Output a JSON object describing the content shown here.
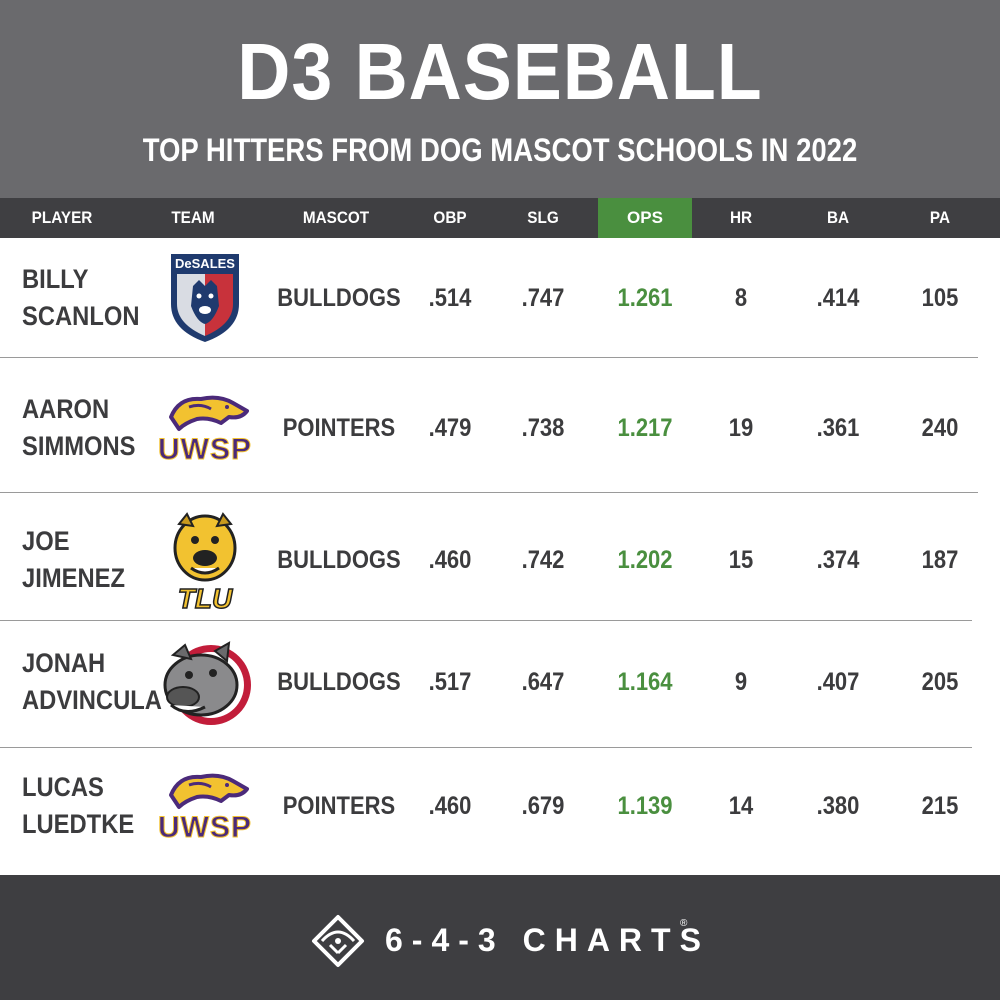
{
  "header": {
    "title": "D3 BASEBALL",
    "subtitle": "TOP HITTERS FROM DOG MASCOT SCHOOLS IN 2022"
  },
  "chart_data": {
    "type": "table",
    "columns": [
      "PLAYER",
      "TEAM",
      "MASCOT",
      "OBP",
      "SLG",
      "OPS",
      "HR",
      "BA",
      "PA"
    ],
    "highlight_column": "OPS",
    "highlight_color": "#4a8f3f",
    "rows": [
      {
        "player_first": "BILLY",
        "player_last": "SCANLON",
        "team_logo": "desales-bulldog-shield-logo",
        "team_text": "DESALES",
        "mascot": "BULLDOGS",
        "obp": ".514",
        "slg": ".747",
        "ops": "1.261",
        "hr": "8",
        "ba": ".414",
        "pa": "105"
      },
      {
        "player_first": "AARON",
        "player_last": "SIMMONS",
        "team_logo": "uwsp-pointer-logo",
        "team_text": "UWSP",
        "mascot": "POINTERS",
        "obp": ".479",
        "slg": ".738",
        "ops": "1.217",
        "hr": "19",
        "ba": ".361",
        "pa": "240"
      },
      {
        "player_first": "JOE",
        "player_last": "JIMENEZ",
        "team_logo": "tlu-bulldog-logo",
        "team_text": "TLU",
        "mascot": "BULLDOGS",
        "obp": ".460",
        "slg": ".742",
        "ops": "1.202",
        "hr": "15",
        "ba": ".374",
        "pa": "187"
      },
      {
        "player_first": "JONAH",
        "player_last": "ADVINCULA",
        "team_logo": "gray-bulldog-logo",
        "team_text": "",
        "mascot": "BULLDOGS",
        "obp": ".517",
        "slg": ".647",
        "ops": "1.164",
        "hr": "9",
        "ba": ".407",
        "pa": "205"
      },
      {
        "player_first": "LUCAS",
        "player_last": "LUEDTKE",
        "team_logo": "uwsp-pointer-logo",
        "team_text": "UWSP",
        "mascot": "POINTERS",
        "obp": ".460",
        "slg": ".679",
        "ops": "1.139",
        "hr": "14",
        "ba": ".380",
        "pa": "215"
      }
    ]
  },
  "footer": {
    "brand": "6-4-3 CHARTS",
    "registered": "®",
    "brand_icon": "baseball-diamond-icon"
  }
}
